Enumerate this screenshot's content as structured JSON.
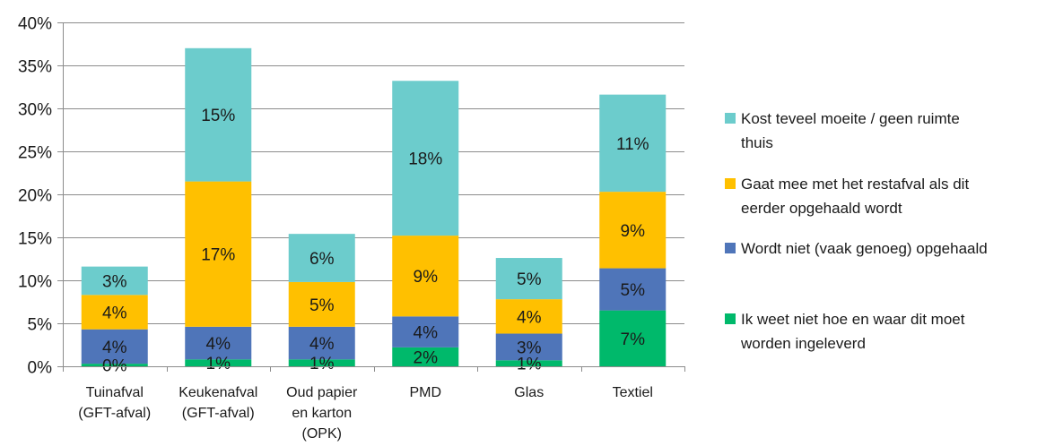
{
  "chart_data": {
    "type": "bar",
    "stacked": true,
    "categories": [
      [
        "Tuinafval",
        "(GFT-afval)"
      ],
      [
        "Keukenafval",
        "(GFT-afval)"
      ],
      [
        "Oud papier",
        "en karton",
        "(OPK)"
      ],
      [
        "PMD"
      ],
      [
        "Glas"
      ],
      [
        "Textiel"
      ]
    ],
    "series": [
      {
        "name": "Ik weet niet hoe en waar dit moet worden ingeleverd",
        "legend_lines": [
          "Ik weet niet hoe en waar dit moet",
          "worden ingeleverd"
        ],
        "color": "#00B96B",
        "values": [
          0.3,
          0.8,
          0.8,
          2.2,
          0.7,
          6.5
        ],
        "labels": [
          "0%",
          "1%",
          "1%",
          "2%",
          "1%",
          "7%"
        ]
      },
      {
        "name": "Wordt niet (vaak genoeg) opgehaald",
        "legend_lines": [
          "Wordt niet (vaak genoeg) opgehaald"
        ],
        "color": "#4F75B9",
        "values": [
          4.0,
          3.8,
          3.8,
          3.6,
          3.1,
          4.9
        ],
        "labels": [
          "4%",
          "4%",
          "4%",
          "4%",
          "3%",
          "5%"
        ]
      },
      {
        "name": "Gaat mee met het restafval als dit eerder opgehaald wordt",
        "legend_lines": [
          "Gaat mee met het restafval als dit",
          "eerder opgehaald wordt"
        ],
        "color": "#FFC000",
        "values": [
          4.0,
          16.9,
          5.2,
          9.4,
          4.0,
          8.9
        ],
        "labels": [
          "4%",
          "17%",
          "5%",
          "9%",
          "4%",
          "9%"
        ]
      },
      {
        "name": "Kost teveel moeite / geen ruimte thuis",
        "legend_lines": [
          "Kost teveel moeite / geen ruimte",
          "thuis"
        ],
        "color": "#6CCCCC",
        "values": [
          3.3,
          15.5,
          5.6,
          18.0,
          4.8,
          11.3
        ],
        "labels": [
          "3%",
          "15%",
          "6%",
          "18%",
          "5%",
          "11%"
        ]
      }
    ],
    "y_ticks": [
      "0%",
      "5%",
      "10%",
      "15%",
      "20%",
      "25%",
      "30%",
      "35%",
      "40%"
    ],
    "ylim": [
      0,
      40
    ],
    "grid": true,
    "legend_position": "right",
    "legend_order": [
      3,
      2,
      1,
      0
    ]
  }
}
